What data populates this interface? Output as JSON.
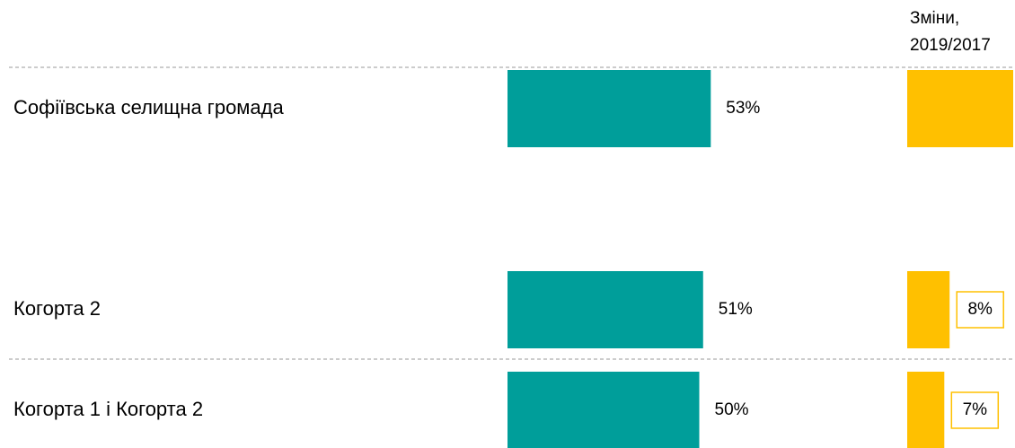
{
  "chart_data": {
    "type": "bar",
    "orientation": "horizontal",
    "categories": [
      "Софіївська селищна громада",
      "Когорта 2",
      "Когорта 1 і Когорта 2"
    ],
    "series": [
      {
        "color": "#009e9a",
        "values": [
          53,
          51,
          50
        ],
        "value_labels": [
          "53%",
          "51%",
          "50%"
        ],
        "xlim": [
          0,
          100
        ]
      },
      {
        "name": "Зміни, 2019/2017",
        "color": "#ffc000",
        "values": [
          20,
          8,
          7
        ],
        "value_labels": [
          null,
          "8%",
          "7%"
        ],
        "xlim": [
          0,
          20
        ]
      }
    ]
  }
}
